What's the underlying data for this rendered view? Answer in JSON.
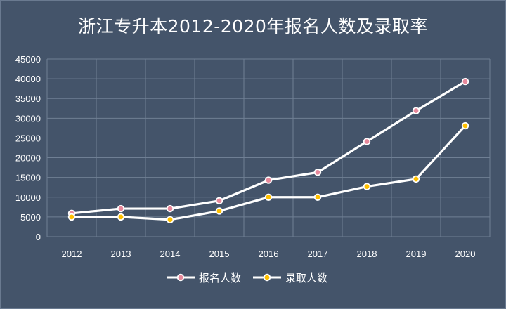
{
  "chart_data": {
    "type": "line",
    "title": "浙江专升本2012-2020年报名人数及录取率",
    "xlabel": "",
    "ylabel": "",
    "x": [
      "2012",
      "2013",
      "2014",
      "2015",
      "2016",
      "2017",
      "2018",
      "2019",
      "2020"
    ],
    "ylim": [
      0,
      45000
    ],
    "yticks": [
      0,
      5000,
      10000,
      15000,
      20000,
      25000,
      30000,
      35000,
      40000,
      45000
    ],
    "grid": true,
    "legend_position": "bottom",
    "series": [
      {
        "name": "报名人数",
        "color": "#e8899c",
        "values": [
          5900,
          7100,
          7100,
          9100,
          14300,
          16300,
          24100,
          31900,
          39300
        ]
      },
      {
        "name": "录取人数",
        "color": "#ffc000",
        "values": [
          5000,
          5000,
          4300,
          6500,
          10000,
          10000,
          12700,
          14600,
          28100
        ]
      }
    ]
  }
}
